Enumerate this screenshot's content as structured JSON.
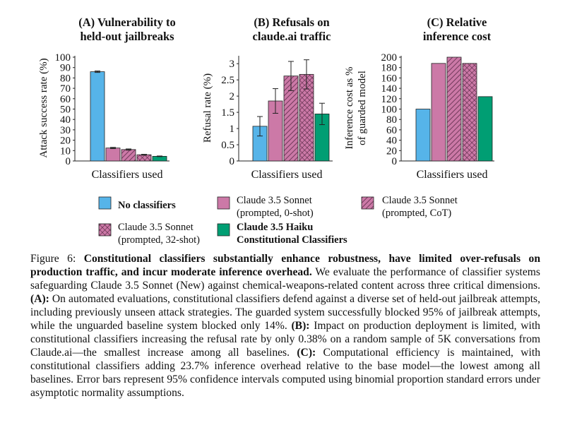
{
  "chart_data": [
    {
      "type": "bar",
      "panel_title": [
        "(A) Vulnerability to",
        "held-out jailbreaks"
      ],
      "ylabel": "Attack success rate (%)",
      "xlabel": "Classifiers used",
      "ylim": [
        0,
        100
      ],
      "yticks": [
        "0",
        "10",
        "20",
        "30",
        "40",
        "50",
        "60",
        "70",
        "80",
        "90",
        "100"
      ],
      "values": [
        86,
        12.5,
        11,
        6,
        4.5
      ],
      "errors": [
        0.7,
        0.6,
        0.6,
        0.4,
        0.3
      ]
    },
    {
      "type": "bar",
      "panel_title": [
        "(B) Refusals on",
        "claude.ai traffic"
      ],
      "ylabel": "Refusal rate (%)",
      "xlabel": "Classifiers used",
      "ylim": [
        0,
        3.2
      ],
      "yticks": [
        "0",
        "0.5",
        "1",
        "1.5",
        "2",
        "2.5",
        "3"
      ],
      "values": [
        1.07,
        1.85,
        2.62,
        2.67,
        1.45
      ],
      "errors": [
        0.3,
        0.38,
        0.45,
        0.45,
        0.33
      ]
    },
    {
      "type": "bar",
      "panel_title": [
        "(C) Relative",
        "inference cost"
      ],
      "ylabel": [
        "Inference cost as %",
        "of guarded model"
      ],
      "xlabel": "Classifiers used",
      "ylim": [
        0,
        200
      ],
      "yticks": [
        "0",
        "20",
        "40",
        "60",
        "80",
        "100",
        "120",
        "140",
        "160",
        "180",
        "200"
      ],
      "values": [
        100,
        188,
        200,
        188,
        124
      ]
    }
  ],
  "legend": [
    {
      "label": [
        "No classifiers"
      ],
      "bold": true,
      "color": "#56b4e9",
      "pattern": "solid"
    },
    {
      "label": [
        "Claude 3.5 Sonnet",
        "(prompted, 0-shot)"
      ],
      "bold": false,
      "color": "#cc79a7",
      "pattern": "solid"
    },
    {
      "label": [
        "Claude 3.5 Sonnet",
        "(prompted, CoT)"
      ],
      "bold": false,
      "color": "#cc79a7",
      "pattern": "diagonal"
    },
    {
      "label": [
        "Claude 3.5 Sonnet",
        "(prompted, 32-shot)"
      ],
      "bold": false,
      "color": "#cc79a7",
      "pattern": "crosshatch"
    },
    {
      "label": [
        "Claude 3.5 Haiku",
        "Constitutional Classifiers"
      ],
      "bold": true,
      "color": "#009e73",
      "pattern": "solid"
    }
  ],
  "caption": {
    "label": "Figure 6: ",
    "bold_title": "Constitutional classifiers substantially enhance robustness, have limited over-refusals on production traffic, and incur moderate inference overhead.",
    "text1": " We evaluate the performance of classifier systems safeguarding Claude 3.5 Sonnet (New) against chemical-weapons-related content across three critical dimensions. ",
    "a_label": "(A):",
    "text_a": " On automated evaluations, constitutional classifiers defend against a diverse set of held-out jailbreak attempts, including previously unseen attack strategies. The guarded system successfully blocked 95% of jailbreak attempts, while the unguarded baseline system blocked only 14%. ",
    "b_label": "(B):",
    "text_b": " Impact on production deployment is limited, with constitutional classifiers increasing the refusal rate by only 0.38% on a random sample of 5K conversations from Claude.ai—the smallest increase among all baselines. ",
    "c_label": "(C):",
    "text_c": " Computational efficiency is maintained, with constitutional classifiers adding 23.7% inference overhead relative to the base model—the lowest among all baselines. Error bars represent 95% confidence intervals computed using binomial proportion standard errors under asymptotic normality assumptions."
  }
}
